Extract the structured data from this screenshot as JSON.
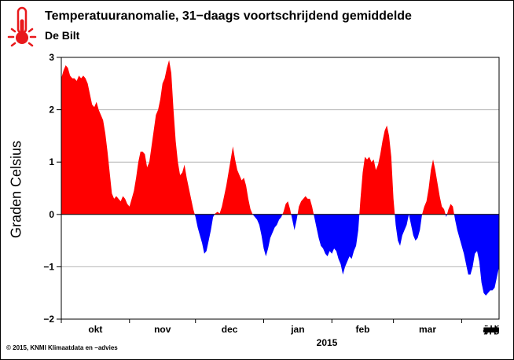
{
  "header": {
    "title": "Temperatuuranomalie, 31−daags voortschrijdend gemiddelde",
    "subtitle": "De Bilt"
  },
  "footer": {
    "credit": "© 2015, KNMI Klimaatdata en −advies",
    "year": "2015"
  },
  "logo": {
    "icon": "thermometer-icon",
    "color": "#e8191c"
  },
  "colors": {
    "positive": "#ff0000",
    "negative": "#0000ff"
  },
  "chart_data": {
    "type": "area",
    "title": "Temperatuuranomalie, 31−daags voortschrijdend gemiddelde",
    "subtitle": "De Bilt",
    "xlabel": "",
    "ylabel": "Graden Celsius",
    "ylim": [
      -2,
      3
    ],
    "y_ticks": [
      "−2",
      "−1",
      "0",
      "1",
      "2",
      "3"
    ],
    "y_tick_values": [
      -2,
      -1,
      0,
      1,
      2,
      3
    ],
    "grid": true,
    "month_labels": [
      {
        "label": "okt",
        "day": 0
      },
      {
        "label": "nov",
        "day": 31
      },
      {
        "label": "dec",
        "day": 61
      },
      {
        "label": "jan",
        "day": 92
      },
      {
        "label": "feb",
        "day": 123
      },
      {
        "label": "mar",
        "day": 151
      },
      {
        "label": "apr",
        "day": 182
      },
      {
        "label": "mei",
        "day": 212
      },
      {
        "label": "jun",
        "day": 243
      },
      {
        "label": "jul",
        "day": 273
      },
      {
        "label": "aug",
        "day": 304
      },
      {
        "label": "sep",
        "day": 335
      },
      {
        "label": "okt",
        "day": 365
      }
    ],
    "series": [
      {
        "points": [
          [
            0,
            2.6
          ],
          [
            1,
            2.75
          ],
          [
            2,
            2.85
          ],
          [
            3,
            2.8
          ],
          [
            4,
            2.65
          ],
          [
            5,
            2.6
          ],
          [
            6,
            2.6
          ],
          [
            7,
            2.55
          ],
          [
            8,
            2.65
          ],
          [
            9,
            2.6
          ],
          [
            10,
            2.65
          ],
          [
            11,
            2.6
          ],
          [
            12,
            2.5
          ],
          [
            13,
            2.3
          ],
          [
            14,
            2.1
          ],
          [
            15,
            2.05
          ],
          [
            16,
            2.15
          ],
          [
            17,
            2.0
          ],
          [
            18,
            1.9
          ],
          [
            19,
            1.8
          ],
          [
            20,
            1.55
          ],
          [
            21,
            1.2
          ],
          [
            22,
            0.8
          ],
          [
            23,
            0.4
          ],
          [
            24,
            0.3
          ],
          [
            25,
            0.35
          ],
          [
            26,
            0.3
          ],
          [
            27,
            0.25
          ],
          [
            28,
            0.35
          ],
          [
            29,
            0.3
          ],
          [
            30,
            0.2
          ],
          [
            31,
            0.15
          ],
          [
            32,
            0.3
          ],
          [
            33,
            0.45
          ],
          [
            34,
            0.7
          ],
          [
            35,
            1.0
          ],
          [
            36,
            1.2
          ],
          [
            37,
            1.2
          ],
          [
            38,
            1.15
          ],
          [
            39,
            0.9
          ],
          [
            40,
            1.0
          ],
          [
            41,
            1.3
          ],
          [
            42,
            1.6
          ],
          [
            43,
            1.9
          ],
          [
            44,
            2.0
          ],
          [
            45,
            2.2
          ],
          [
            46,
            2.5
          ],
          [
            47,
            2.6
          ],
          [
            48,
            2.8
          ],
          [
            49,
            2.95
          ],
          [
            50,
            2.7
          ],
          [
            51,
            2.0
          ],
          [
            52,
            1.4
          ],
          [
            53,
            1.0
          ],
          [
            54,
            0.75
          ],
          [
            55,
            0.8
          ],
          [
            56,
            0.95
          ],
          [
            57,
            0.7
          ],
          [
            58,
            0.5
          ],
          [
            59,
            0.3
          ],
          [
            60,
            0.1
          ],
          [
            61,
            -0.05
          ],
          [
            62,
            -0.25
          ],
          [
            63,
            -0.4
          ],
          [
            64,
            -0.55
          ],
          [
            65,
            -0.75
          ],
          [
            66,
            -0.7
          ],
          [
            67,
            -0.5
          ],
          [
            68,
            -0.3
          ],
          [
            69,
            -0.05
          ],
          [
            70,
            0.02
          ],
          [
            71,
            0.05
          ],
          [
            72,
            0.02
          ],
          [
            73,
            0.15
          ],
          [
            74,
            0.35
          ],
          [
            75,
            0.55
          ],
          [
            76,
            0.8
          ],
          [
            77,
            1.05
          ],
          [
            78,
            1.3
          ],
          [
            79,
            1.05
          ],
          [
            80,
            0.85
          ],
          [
            81,
            0.75
          ],
          [
            82,
            0.65
          ],
          [
            83,
            0.7
          ],
          [
            84,
            0.55
          ],
          [
            85,
            0.3
          ],
          [
            86,
            0.1
          ],
          [
            87,
            0.0
          ],
          [
            88,
            -0.05
          ],
          [
            89,
            -0.1
          ],
          [
            90,
            -0.2
          ],
          [
            91,
            -0.4
          ],
          [
            92,
            -0.65
          ],
          [
            93,
            -0.8
          ],
          [
            94,
            -0.65
          ],
          [
            95,
            -0.45
          ],
          [
            96,
            -0.35
          ],
          [
            97,
            -0.25
          ],
          [
            98,
            -0.2
          ],
          [
            99,
            -0.1
          ],
          [
            100,
            -0.05
          ],
          [
            101,
            0.05
          ],
          [
            102,
            0.2
          ],
          [
            103,
            0.25
          ],
          [
            104,
            0.1
          ],
          [
            105,
            -0.1
          ],
          [
            106,
            -0.3
          ],
          [
            107,
            -0.1
          ],
          [
            108,
            0.15
          ],
          [
            109,
            0.25
          ],
          [
            110,
            0.3
          ],
          [
            111,
            0.35
          ],
          [
            112,
            0.3
          ],
          [
            113,
            0.3
          ],
          [
            114,
            0.15
          ],
          [
            115,
            -0.05
          ],
          [
            116,
            -0.25
          ],
          [
            117,
            -0.45
          ],
          [
            118,
            -0.6
          ],
          [
            119,
            -0.65
          ],
          [
            120,
            -0.75
          ],
          [
            121,
            -0.8
          ],
          [
            122,
            -0.7
          ],
          [
            123,
            -0.75
          ],
          [
            124,
            -0.65
          ],
          [
            125,
            -0.7
          ],
          [
            126,
            -0.85
          ],
          [
            127,
            -0.95
          ],
          [
            128,
            -1.15
          ],
          [
            129,
            -1.0
          ],
          [
            130,
            -0.9
          ],
          [
            131,
            -0.8
          ],
          [
            132,
            -0.85
          ],
          [
            133,
            -0.7
          ],
          [
            134,
            -0.6
          ],
          [
            135,
            -0.3
          ],
          [
            136,
            0.3
          ],
          [
            137,
            0.8
          ],
          [
            138,
            1.1
          ],
          [
            139,
            1.05
          ],
          [
            140,
            1.1
          ],
          [
            141,
            1.0
          ],
          [
            142,
            1.05
          ],
          [
            143,
            0.85
          ],
          [
            144,
            0.95
          ],
          [
            145,
            1.15
          ],
          [
            146,
            1.4
          ],
          [
            147,
            1.6
          ],
          [
            148,
            1.7
          ],
          [
            149,
            1.5
          ],
          [
            150,
            1.1
          ],
          [
            151,
            0.3
          ],
          [
            152,
            -0.2
          ],
          [
            153,
            -0.5
          ],
          [
            154,
            -0.6
          ],
          [
            155,
            -0.4
          ],
          [
            156,
            -0.3
          ],
          [
            157,
            -0.2
          ],
          [
            158,
            0.0
          ],
          [
            159,
            -0.2
          ],
          [
            160,
            -0.4
          ],
          [
            161,
            -0.5
          ],
          [
            162,
            -0.45
          ],
          [
            163,
            -0.3
          ],
          [
            164,
            0.0
          ],
          [
            165,
            0.15
          ],
          [
            166,
            0.25
          ],
          [
            167,
            0.5
          ],
          [
            168,
            0.85
          ],
          [
            169,
            1.05
          ],
          [
            170,
            0.85
          ],
          [
            171,
            0.6
          ],
          [
            172,
            0.35
          ],
          [
            173,
            0.15
          ],
          [
            174,
            0.1
          ],
          [
            175,
            -0.05
          ],
          [
            176,
            0.1
          ],
          [
            177,
            0.2
          ],
          [
            178,
            0.15
          ],
          [
            179,
            -0.1
          ],
          [
            180,
            -0.3
          ],
          [
            181,
            -0.45
          ],
          [
            182,
            -0.6
          ],
          [
            183,
            -0.75
          ],
          [
            184,
            -0.95
          ],
          [
            185,
            -1.15
          ],
          [
            186,
            -1.15
          ],
          [
            187,
            -1.0
          ],
          [
            188,
            -0.75
          ],
          [
            189,
            -0.7
          ],
          [
            190,
            -0.9
          ],
          [
            191,
            -1.3
          ],
          [
            192,
            -1.5
          ],
          [
            193,
            -1.55
          ],
          [
            194,
            -1.5
          ],
          [
            195,
            -1.45
          ],
          [
            196,
            -1.45
          ],
          [
            197,
            -1.4
          ],
          [
            198,
            -1.2
          ],
          [
            199,
            -1.0
          ]
        ]
      }
    ]
  }
}
